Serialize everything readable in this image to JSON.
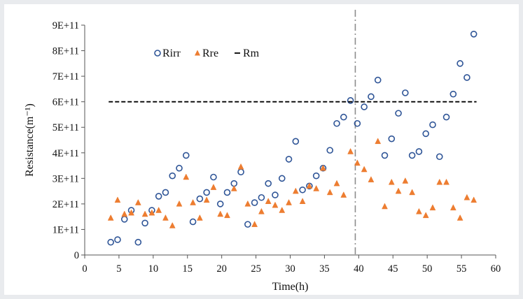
{
  "chart_data": {
    "type": "scatter",
    "title": "",
    "xlabel": "Time(h)",
    "ylabel": "Resistance(m⁻¹)",
    "xlim": [
      0,
      60
    ],
    "ylim": [
      0,
      900000000000
    ],
    "x_ticks": [
      "0",
      "5",
      "10",
      "15",
      "20",
      "25",
      "30",
      "35",
      "40",
      "45",
      "50",
      "55",
      "60"
    ],
    "y_ticks": [
      "0",
      "1E+11",
      "2E+11",
      "3E+11",
      "4E+11",
      "5E+11",
      "6E+11",
      "7E+11",
      "8E+11",
      "9E+11"
    ],
    "legend_position": "top-left",
    "grid": false,
    "vertical_marker_x": 39.5,
    "series": [
      {
        "name": "Rirr",
        "marker": "circle",
        "color": "#2f5597",
        "points": [
          [
            3.8,
            50000000000.0
          ],
          [
            4.8,
            60000000000.0
          ],
          [
            5.8,
            140000000000.0
          ],
          [
            6.8,
            175000000000.0
          ],
          [
            7.8,
            50000000000.0
          ],
          [
            8.8,
            125000000000.0
          ],
          [
            9.8,
            175000000000.0
          ],
          [
            10.8,
            230000000000.0
          ],
          [
            11.8,
            245000000000.0
          ],
          [
            12.8,
            310000000000.0
          ],
          [
            13.8,
            340000000000.0
          ],
          [
            14.8,
            390000000000.0
          ],
          [
            15.8,
            130000000000.0
          ],
          [
            16.8,
            220000000000.0
          ],
          [
            17.8,
            245000000000.0
          ],
          [
            18.8,
            305000000000.0
          ],
          [
            19.8,
            200000000000.0
          ],
          [
            20.8,
            245000000000.0
          ],
          [
            21.8,
            280000000000.0
          ],
          [
            22.8,
            325000000000.0
          ],
          [
            23.8,
            120000000000.0
          ],
          [
            24.8,
            205000000000.0
          ],
          [
            25.8,
            225000000000.0
          ],
          [
            26.8,
            280000000000.0
          ],
          [
            27.8,
            235000000000.0
          ],
          [
            28.8,
            300000000000.0
          ],
          [
            29.8,
            375000000000.0
          ],
          [
            30.8,
            445000000000.0
          ],
          [
            31.8,
            255000000000.0
          ],
          [
            32.8,
            270000000000.0
          ],
          [
            33.8,
            310000000000.0
          ],
          [
            34.8,
            340000000000.0
          ],
          [
            35.8,
            410000000000.0
          ],
          [
            36.8,
            515000000000.0
          ],
          [
            37.8,
            540000000000.0
          ],
          [
            38.8,
            605000000000.0
          ],
          [
            39.8,
            515000000000.0
          ],
          [
            40.8,
            580000000000.0
          ],
          [
            41.8,
            620000000000.0
          ],
          [
            42.8,
            685000000000.0
          ],
          [
            43.8,
            390000000000.0
          ],
          [
            44.8,
            455000000000.0
          ],
          [
            45.8,
            555000000000.0
          ],
          [
            46.8,
            635000000000.0
          ],
          [
            47.8,
            390000000000.0
          ],
          [
            48.8,
            405000000000.0
          ],
          [
            49.8,
            475000000000.0
          ],
          [
            50.8,
            510000000000.0
          ],
          [
            51.8,
            385000000000.0
          ],
          [
            52.8,
            540000000000.0
          ],
          [
            53.8,
            630000000000.0
          ],
          [
            54.8,
            750000000000.0
          ],
          [
            55.8,
            695000000000.0
          ],
          [
            56.8,
            865000000000.0
          ]
        ]
      },
      {
        "name": "Rre",
        "marker": "triangle",
        "color": "#ed7d31",
        "points": [
          [
            3.8,
            145000000000.0
          ],
          [
            4.8,
            215000000000.0
          ],
          [
            5.8,
            160000000000.0
          ],
          [
            6.8,
            165000000000.0
          ],
          [
            7.8,
            205000000000.0
          ],
          [
            8.8,
            160000000000.0
          ],
          [
            9.8,
            165000000000.0
          ],
          [
            10.8,
            175000000000.0
          ],
          [
            11.8,
            145000000000.0
          ],
          [
            12.8,
            115000000000.0
          ],
          [
            13.8,
            200000000000.0
          ],
          [
            14.8,
            305000000000.0
          ],
          [
            15.8,
            205000000000.0
          ],
          [
            16.8,
            145000000000.0
          ],
          [
            17.8,
            215000000000.0
          ],
          [
            18.8,
            265000000000.0
          ],
          [
            19.8,
            160000000000.0
          ],
          [
            20.8,
            155000000000.0
          ],
          [
            21.8,
            260000000000.0
          ],
          [
            22.8,
            345000000000.0
          ],
          [
            23.8,
            200000000000.0
          ],
          [
            24.8,
            120000000000.0
          ],
          [
            25.8,
            170000000000.0
          ],
          [
            26.8,
            210000000000.0
          ],
          [
            27.8,
            195000000000.0
          ],
          [
            28.8,
            175000000000.0
          ],
          [
            29.8,
            205000000000.0
          ],
          [
            30.8,
            250000000000.0
          ],
          [
            31.8,
            210000000000.0
          ],
          [
            32.8,
            270000000000.0
          ],
          [
            33.8,
            260000000000.0
          ],
          [
            34.8,
            340000000000.0
          ],
          [
            35.8,
            245000000000.0
          ],
          [
            36.8,
            280000000000.0
          ],
          [
            37.8,
            235000000000.0
          ],
          [
            38.8,
            405000000000.0
          ],
          [
            39.8,
            360000000000.0
          ],
          [
            40.8,
            335000000000.0
          ],
          [
            41.8,
            295000000000.0
          ],
          [
            42.8,
            445000000000.0
          ],
          [
            43.8,
            190000000000.0
          ],
          [
            44.8,
            285000000000.0
          ],
          [
            45.8,
            250000000000.0
          ],
          [
            46.8,
            290000000000.0
          ],
          [
            47.8,
            245000000000.0
          ],
          [
            48.8,
            170000000000.0
          ],
          [
            49.8,
            155000000000.0
          ],
          [
            50.8,
            185000000000.0
          ],
          [
            51.8,
            285000000000.0
          ],
          [
            52.8,
            285000000000.0
          ],
          [
            53.8,
            185000000000.0
          ],
          [
            54.8,
            145000000000.0
          ],
          [
            55.8,
            225000000000.0
          ],
          [
            56.8,
            215000000000.0
          ]
        ]
      },
      {
        "name": "Rm",
        "marker": "dashed-line",
        "color": "#000000",
        "points": [
          [
            3.5,
            600000000000.0
          ],
          [
            57.2,
            600000000000.0
          ]
        ]
      }
    ]
  }
}
